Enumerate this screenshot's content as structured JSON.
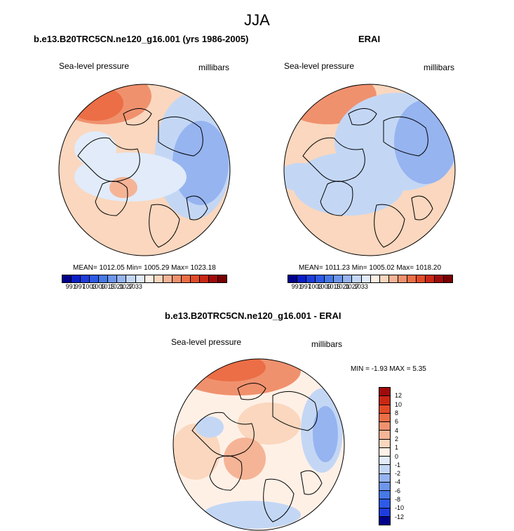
{
  "page": {
    "title": "JJA"
  },
  "panels": [
    {
      "title": "b.e13.B20TRC5CN.ne120_g16.001 (yrs 1986-2005)",
      "variable": "Sea-level pressure",
      "units": "millibars",
      "stats": "MEAN= 1012.05  Min= 1005.29  Max= 1023.18"
    },
    {
      "title": "ERAI",
      "variable": "Sea-level pressure",
      "units": "millibars",
      "stats": "MEAN= 1011.23  Min= 1005.02  Max= 1018.20"
    },
    {
      "title": "b.e13.B20TRC5CN.ne120_g16.001 - ERAI",
      "variable": "Sea-level pressure",
      "units": "millibars",
      "stats": "MIN =  -1.93 MAX =   5.35"
    }
  ],
  "chart_data": [
    {
      "type": "heatmap",
      "title": "b.e13.B20TRC5CN.ne120_g16.001 (yrs 1986-2005)",
      "projection": "polar stereographic (north pole)",
      "field": "Sea-level pressure",
      "units": "millibars",
      "mean": 1012.05,
      "min": 1005.29,
      "max": 1023.18,
      "colorbar_ticks": [
        "991",
        "997",
        "1003",
        "1009",
        "1015",
        "1021",
        "1027",
        "1033"
      ],
      "colorbar_colors": [
        "#00008b",
        "#0a1ec8",
        "#1e3cdc",
        "#2d5ae6",
        "#4678e6",
        "#6e96ea",
        "#96b4f0",
        "#c3d7f5",
        "#e1ebfa",
        "#fff0e6",
        "#fad7be",
        "#f5b496",
        "#f0916e",
        "#eb6e46",
        "#e14b28",
        "#c82814",
        "#a00a0a",
        "#780000"
      ]
    },
    {
      "type": "heatmap",
      "title": "ERAI",
      "projection": "polar stereographic (north pole)",
      "field": "Sea-level pressure",
      "units": "millibars",
      "mean": 1011.23,
      "min": 1005.02,
      "max": 1018.2,
      "colorbar_ticks": [
        "991",
        "997",
        "1003",
        "1009",
        "1015",
        "1021",
        "1027",
        "1033"
      ],
      "colorbar_colors": [
        "#00008b",
        "#0a1ec8",
        "#1e3cdc",
        "#2d5ae6",
        "#4678e6",
        "#6e96ea",
        "#96b4f0",
        "#c3d7f5",
        "#e1ebfa",
        "#fff0e6",
        "#fad7be",
        "#f5b496",
        "#f0916e",
        "#eb6e46",
        "#e14b28",
        "#c82814",
        "#a00a0a",
        "#780000"
      ]
    },
    {
      "type": "heatmap",
      "title": "b.e13.B20TRC5CN.ne120_g16.001 - ERAI",
      "projection": "polar stereographic (north pole)",
      "field": "Sea-level pressure",
      "units": "millibars",
      "min": -1.93,
      "max": 5.35,
      "colorbar_ticks": [
        "12",
        "10",
        "8",
        "6",
        "4",
        "2",
        "1",
        "0",
        "-1",
        "-2",
        "-4",
        "-6",
        "-8",
        "-10",
        "-12"
      ],
      "colorbar_colors": [
        "#a00a0a",
        "#c82814",
        "#e14b28",
        "#eb6e46",
        "#f0916e",
        "#f5b496",
        "#fad7be",
        "#fff0e6",
        "#e1ebfa",
        "#c3d7f5",
        "#96b4f0",
        "#6e96ea",
        "#4678e6",
        "#2d5ae6",
        "#1e3cdc",
        "#00008b"
      ]
    }
  ]
}
